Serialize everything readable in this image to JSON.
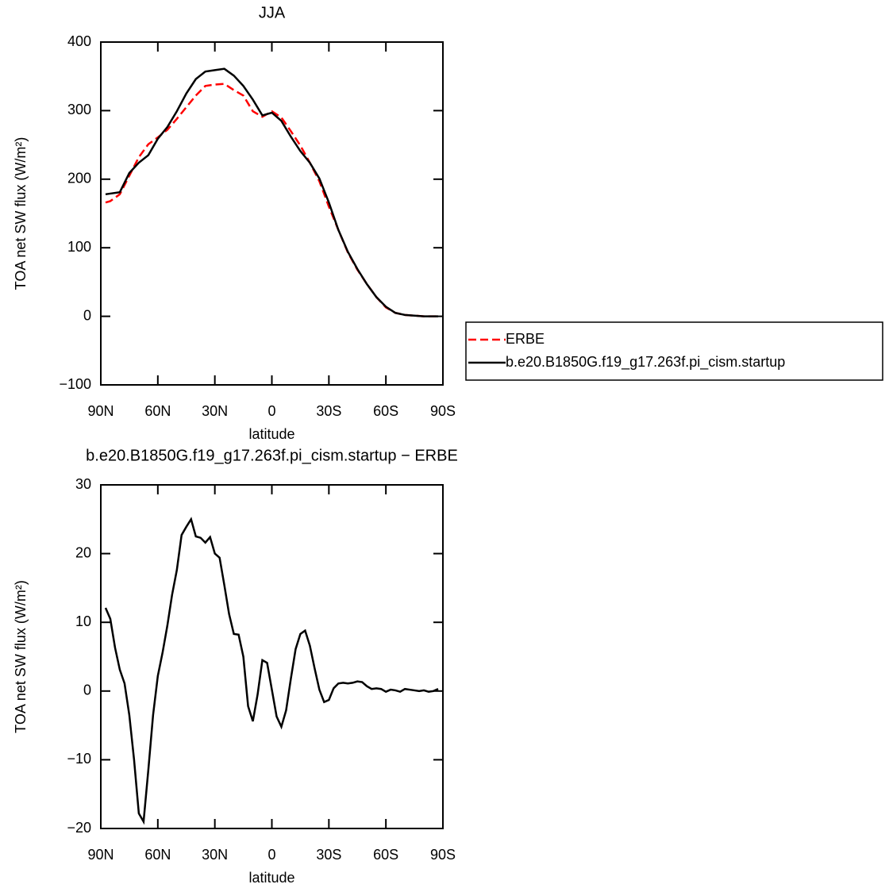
{
  "chart_data": [
    {
      "type": "line",
      "title": "JJA",
      "xlabel": "latitude",
      "ylabel": "TOA net SW flux (W/m²)",
      "xlim": [
        90,
        -90
      ],
      "ylim": [
        -100,
        400
      ],
      "xticks": [
        {
          "value": 90,
          "label": "90N"
        },
        {
          "value": 60,
          "label": "60N"
        },
        {
          "value": 30,
          "label": "30N"
        },
        0,
        {
          "value": -30,
          "label": "30S"
        },
        {
          "value": -60,
          "label": "60S"
        },
        {
          "value": -90,
          "label": "90S"
        }
      ],
      "yticks": [
        {
          "value": -100,
          "label": "−100"
        },
        0,
        100,
        200,
        300,
        400
      ],
      "legend": "right",
      "x": [
        87.5,
        85,
        80,
        75,
        70,
        65,
        60,
        55,
        50,
        45,
        40,
        35,
        30,
        25,
        20,
        15,
        10,
        5,
        0,
        -5,
        -10,
        -15,
        -20,
        -25,
        -30,
        -35,
        -40,
        -45,
        -50,
        -55,
        -60,
        -65,
        -70,
        -75,
        -80,
        -85,
        -87.5
      ],
      "series": [
        {
          "name": "ERBE",
          "color": "#ff0000",
          "linestyle": "dashed",
          "values": [
            166,
            168,
            178,
            205,
            232,
            251,
            261,
            272,
            288,
            305,
            322,
            336,
            338,
            339,
            330,
            322,
            299,
            291,
            299,
            290,
            270,
            249,
            224,
            197,
            160,
            126,
            93,
            68,
            47,
            28,
            13,
            5,
            2,
            1,
            0,
            0,
            0
          ]
        },
        {
          "name": "b.e20.B1850G.f19_g17.263f.pi_cism.startup",
          "color": "#000000",
          "linestyle": "solid",
          "values": [
            178,
            179,
            181,
            209,
            224,
            235,
            259,
            276,
            299,
            325,
            346,
            357,
            359,
            361,
            351,
            336,
            316,
            293,
            297,
            285,
            262,
            241,
            224,
            201,
            166,
            126,
            94,
            69,
            47,
            28,
            14,
            5,
            2,
            1,
            0,
            0,
            0
          ]
        }
      ]
    },
    {
      "type": "line",
      "title": "b.e20.B1850G.f19_g17.263f.pi_cism.startup − ERBE",
      "xlabel": "latitude",
      "ylabel": "TOA net SW flux (W/m²)",
      "xlim": [
        90,
        -90
      ],
      "ylim": [
        -20,
        30
      ],
      "xticks": [
        {
          "value": 90,
          "label": "90N"
        },
        {
          "value": 60,
          "label": "60N"
        },
        {
          "value": 30,
          "label": "30N"
        },
        0,
        {
          "value": -30,
          "label": "30S"
        },
        {
          "value": -60,
          "label": "60S"
        },
        {
          "value": -90,
          "label": "90S"
        }
      ],
      "yticks": [
        {
          "value": -20,
          "label": "−20"
        },
        {
          "value": -10,
          "label": "−10"
        },
        0,
        10,
        20,
        30
      ],
      "x": [
        87.5,
        85,
        82.5,
        80,
        77.5,
        75,
        72.5,
        70,
        67.5,
        65,
        62.5,
        60,
        57.5,
        55,
        52.5,
        50,
        47.5,
        45,
        42.5,
        40,
        37.5,
        35,
        32.5,
        30,
        27.5,
        25,
        22.5,
        20,
        17.5,
        15,
        12.5,
        10,
        7.5,
        5,
        2.5,
        0,
        -2.5,
        -5,
        -7.5,
        -10,
        -12.5,
        -15,
        -17.5,
        -20,
        -22.5,
        -25,
        -27.5,
        -30,
        -32.5,
        -35,
        -37.5,
        -40,
        -42.5,
        -45,
        -47.5,
        -50,
        -52.5,
        -55,
        -57.5,
        -60,
        -62.5,
        -65,
        -67.5,
        -70,
        -72.5,
        -75,
        -77.5,
        -80,
        -82.5,
        -85,
        -87.5
      ],
      "series": [
        {
          "color": "#000000",
          "linestyle": "solid",
          "values": [
            12.1,
            10.5,
            6.3,
            3.1,
            1.1,
            -3.5,
            -10,
            -17.8,
            -19,
            -11.5,
            -3.5,
            2.2,
            5.6,
            9.5,
            14,
            17.6,
            22.7,
            23.9,
            25,
            22.5,
            22.3,
            21.6,
            22.4,
            20,
            19.4,
            15.4,
            11.2,
            8.3,
            8.2,
            5,
            -2.2,
            -4.4,
            -0.5,
            4.5,
            4.1,
            0.2,
            -3.7,
            -5.2,
            -2.8,
            1.8,
            6.1,
            8.3,
            8.8,
            6.6,
            3.3,
            0.2,
            -1.6,
            -1.3,
            0.4,
            1.1,
            1.2,
            1.1,
            1.2,
            1.4,
            1.3,
            0.7,
            0.3,
            0.4,
            0.3,
            -0.1,
            0.2,
            0.1,
            -0.1,
            0.3,
            0.2,
            0.1,
            0.0,
            0.1,
            -0.1,
            0.0,
            0.3
          ]
        }
      ]
    }
  ]
}
